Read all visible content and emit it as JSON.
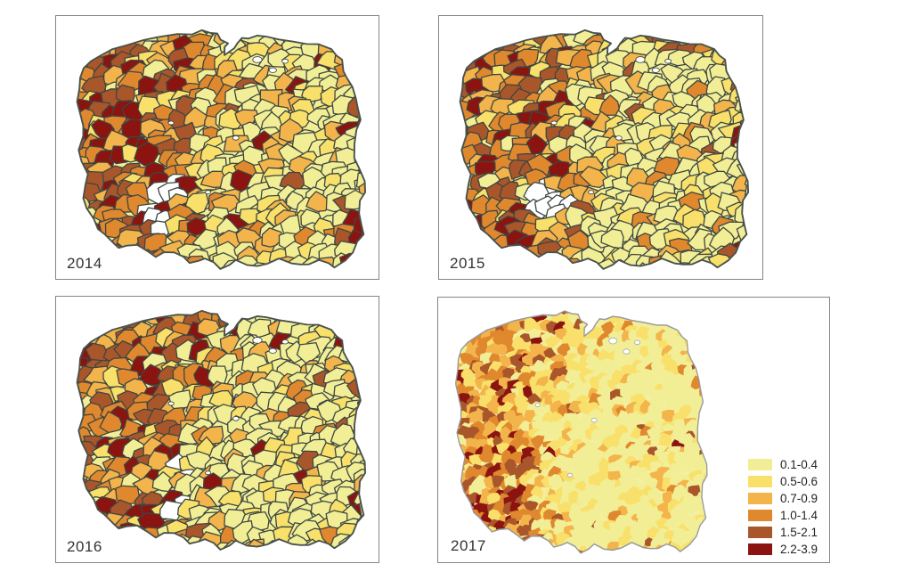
{
  "legend": {
    "items": [
      {
        "label": "0.1-0.4",
        "color": "#F2EE96"
      },
      {
        "label": "0.5-0.6",
        "color": "#F8E06A"
      },
      {
        "label": "0.7-0.9",
        "color": "#F3B44B"
      },
      {
        "label": "1.0-1.4",
        "color": "#E0882E"
      },
      {
        "label": "1.5-2.1",
        "color": "#A9562B"
      },
      {
        "label": "2.2-3.9",
        "color": "#8B1410"
      }
    ]
  },
  "map": {
    "panels": [
      {
        "year": "2014"
      },
      {
        "year": "2015"
      },
      {
        "year": "2016"
      },
      {
        "year": "2017"
      }
    ],
    "no_data_color": "#FFFFFF",
    "cell_border_color": "#3D4742",
    "outline_color": "#49524C",
    "outline_color_light_panel": "#9A9A9A",
    "panel_border_color": "#848484",
    "year_label_color": "#333333",
    "background_color": "#FFFFFF"
  }
}
